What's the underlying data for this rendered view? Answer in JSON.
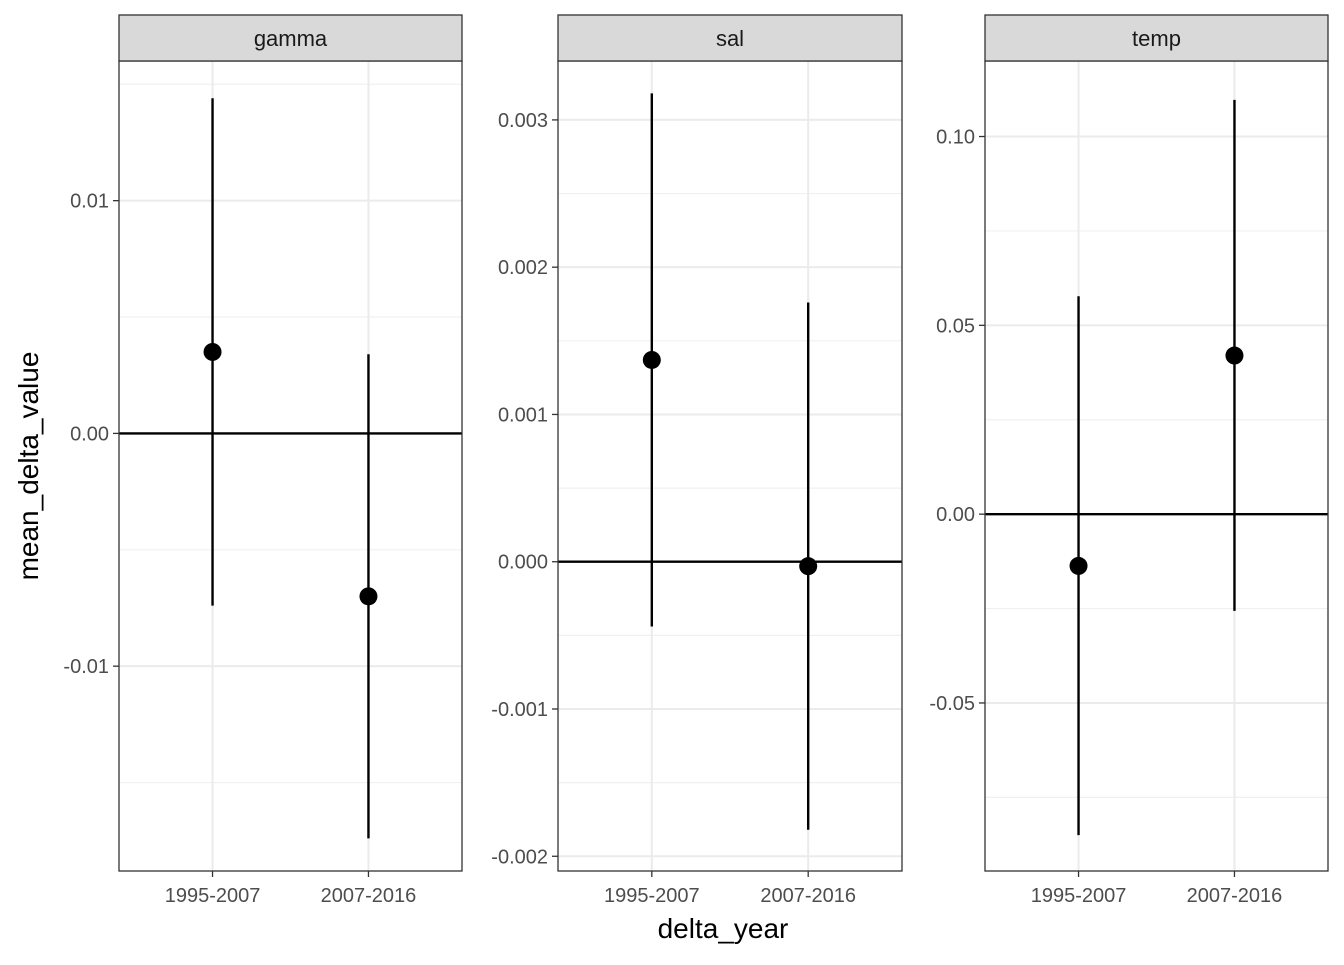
{
  "chart_data": {
    "type": "errorbar",
    "xlabel": "delta_year",
    "ylabel": "mean_delta_value",
    "categories": [
      "1995-2007",
      "2007-2016"
    ],
    "grid": true,
    "hline": 0,
    "facets": [
      {
        "name": "gamma",
        "ylim": [
          -0.0188,
          0.016
        ],
        "yticks": [
          -0.01,
          0.0,
          0.01
        ],
        "ytick_labels": [
          "-0.01",
          "0.00",
          "0.01"
        ],
        "points": [
          {
            "x": "1995-2007",
            "y": 0.0035,
            "ymin": -0.0074,
            "ymax": 0.0144
          },
          {
            "x": "2007-2016",
            "y": -0.007,
            "ymin": -0.0174,
            "ymax": 0.0034
          }
        ]
      },
      {
        "name": "sal",
        "ylim": [
          -0.0021,
          0.0034
        ],
        "yticks": [
          -0.002,
          -0.001,
          0.0,
          0.001,
          0.002,
          0.003
        ],
        "ytick_labels": [
          "-0.002",
          "-0.001",
          "0.000",
          "0.001",
          "0.002",
          "0.003"
        ],
        "points": [
          {
            "x": "1995-2007",
            "y": 0.00137,
            "ymin": -0.00044,
            "ymax": 0.00318
          },
          {
            "x": "2007-2016",
            "y": -3e-05,
            "ymin": -0.00182,
            "ymax": 0.00176
          }
        ]
      },
      {
        "name": "temp",
        "ylim": [
          -0.0945,
          0.12
        ],
        "yticks": [
          -0.05,
          0.0,
          0.05,
          0.1
        ],
        "ytick_labels": [
          "-0.05",
          "0.00",
          "0.05",
          "0.10"
        ],
        "points": [
          {
            "x": "1995-2007",
            "y": -0.0137,
            "ymin": -0.085,
            "ymax": 0.0577
          },
          {
            "x": "2007-2016",
            "y": 0.042,
            "ymin": -0.0256,
            "ymax": 0.1097
          }
        ]
      }
    ]
  }
}
